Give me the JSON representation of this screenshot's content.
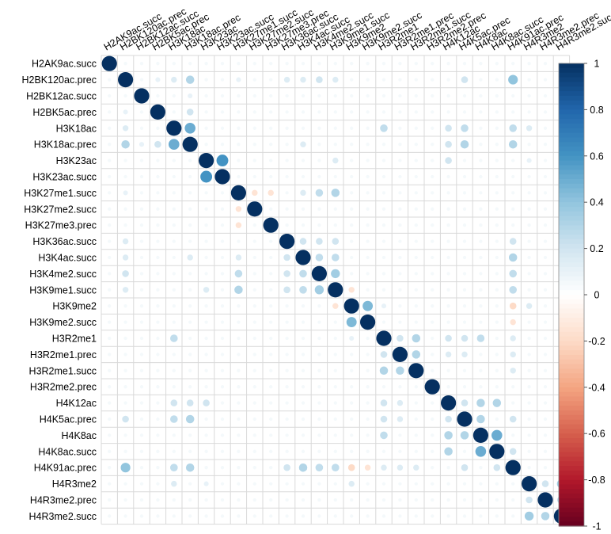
{
  "chart_data": {
    "type": "heatmap",
    "variables": [
      "H2AK9ac.succ",
      "H2BK120ac.prec",
      "H2BK12ac.succ",
      "H2BK5ac.prec",
      "H3K18ac",
      "H3K18ac.prec",
      "H3K23ac",
      "H3K23ac.succ",
      "H3K27me1.succ",
      "H3K27me2.succ",
      "H3K27me3.prec",
      "H3K36ac.succ",
      "H3K4ac.succ",
      "H3K4me2.succ",
      "H3K9me1.succ",
      "H3K9me2",
      "H3K9me2.succ",
      "H3R2me1",
      "H3R2me1.prec",
      "H3R2me1.succ",
      "H3R2me2.prec",
      "H4K12ac",
      "H4K5ac.prec",
      "H4K8ac",
      "H4K8ac.succ",
      "H4K91ac.prec",
      "H4R3me2",
      "H4R3me2.prec",
      "H4R3me2.succ"
    ],
    "correlations_nonzero": [
      [
        1,
        5,
        0.3
      ],
      [
        1,
        8,
        0.1
      ],
      [
        1,
        11,
        0.15
      ],
      [
        1,
        12,
        0.15
      ],
      [
        1,
        13,
        0.2
      ],
      [
        1,
        14,
        0.15
      ],
      [
        1,
        22,
        0.2
      ],
      [
        1,
        25,
        0.4
      ],
      [
        1,
        3,
        0.1
      ],
      [
        1,
        4,
        0.15
      ],
      [
        2,
        5,
        0.1
      ],
      [
        3,
        5,
        0.2
      ],
      [
        4,
        5,
        0.5
      ],
      [
        4,
        17,
        0.25
      ],
      [
        4,
        21,
        0.2
      ],
      [
        4,
        22,
        0.25
      ],
      [
        4,
        25,
        0.25
      ],
      [
        4,
        26,
        0.15
      ],
      [
        5,
        21,
        0.2
      ],
      [
        5,
        22,
        0.3
      ],
      [
        5,
        25,
        0.3
      ],
      [
        5,
        12,
        0.15
      ],
      [
        6,
        7,
        0.6
      ],
      [
        6,
        14,
        0.15
      ],
      [
        6,
        21,
        0.2
      ],
      [
        6,
        26,
        0.1
      ],
      [
        8,
        9,
        -0.15
      ],
      [
        8,
        12,
        0.15
      ],
      [
        8,
        13,
        0.25
      ],
      [
        8,
        14,
        0.3
      ],
      [
        8,
        10,
        -0.15
      ],
      [
        11,
        12,
        0.2
      ],
      [
        11,
        13,
        0.2
      ],
      [
        11,
        14,
        0.2
      ],
      [
        11,
        25,
        0.2
      ],
      [
        12,
        13,
        0.25
      ],
      [
        12,
        14,
        0.25
      ],
      [
        12,
        25,
        0.3
      ],
      [
        13,
        14,
        0.35
      ],
      [
        13,
        25,
        0.25
      ],
      [
        14,
        25,
        0.25
      ],
      [
        15,
        16,
        0.45
      ],
      [
        15,
        25,
        -0.2
      ],
      [
        15,
        26,
        0.15
      ],
      [
        15,
        14,
        -0.15
      ],
      [
        15,
        17,
        0.1
      ],
      [
        16,
        25,
        -0.15
      ],
      [
        17,
        18,
        0.2
      ],
      [
        17,
        19,
        0.3
      ],
      [
        17,
        21,
        0.2
      ],
      [
        17,
        22,
        0.2
      ],
      [
        17,
        23,
        0.25
      ],
      [
        17,
        25,
        0.15
      ],
      [
        18,
        19,
        0.3
      ],
      [
        18,
        21,
        0.15
      ],
      [
        18,
        22,
        0.15
      ],
      [
        18,
        25,
        0.15
      ],
      [
        19,
        25,
        0.15
      ],
      [
        21,
        23,
        0.3
      ],
      [
        21,
        24,
        0.3
      ],
      [
        21,
        22,
        0.2
      ],
      [
        22,
        23,
        0.3
      ],
      [
        22,
        25,
        0.2
      ],
      [
        23,
        24,
        0.5
      ],
      [
        24,
        25,
        0.2
      ],
      [
        26,
        27,
        0.2
      ],
      [
        26,
        28,
        0.35
      ],
      [
        27,
        28,
        0.3
      ]
    ],
    "diagonal": 1,
    "default_offdiag": 0.05,
    "colorbar": {
      "ticks": [
        1,
        0.8,
        0.6,
        0.4,
        0.2,
        0,
        -0.2,
        -0.4,
        -0.6,
        -0.8,
        -1
      ],
      "tick_labels": [
        "1",
        "0.8",
        "0.6",
        "0.4",
        "0.2",
        "0",
        "-0.2",
        "-0.4",
        "-0.6",
        "-0.8",
        "-1"
      ],
      "range": [
        -1,
        1
      ],
      "colors": [
        "#67001f",
        "#b2182b",
        "#d6604d",
        "#f4a582",
        "#fddbc7",
        "#ffffff",
        "#d1e5f0",
        "#92c5de",
        "#4393c3",
        "#2166ac",
        "#053061"
      ]
    },
    "title": "",
    "xlabel": "",
    "ylabel": ""
  }
}
